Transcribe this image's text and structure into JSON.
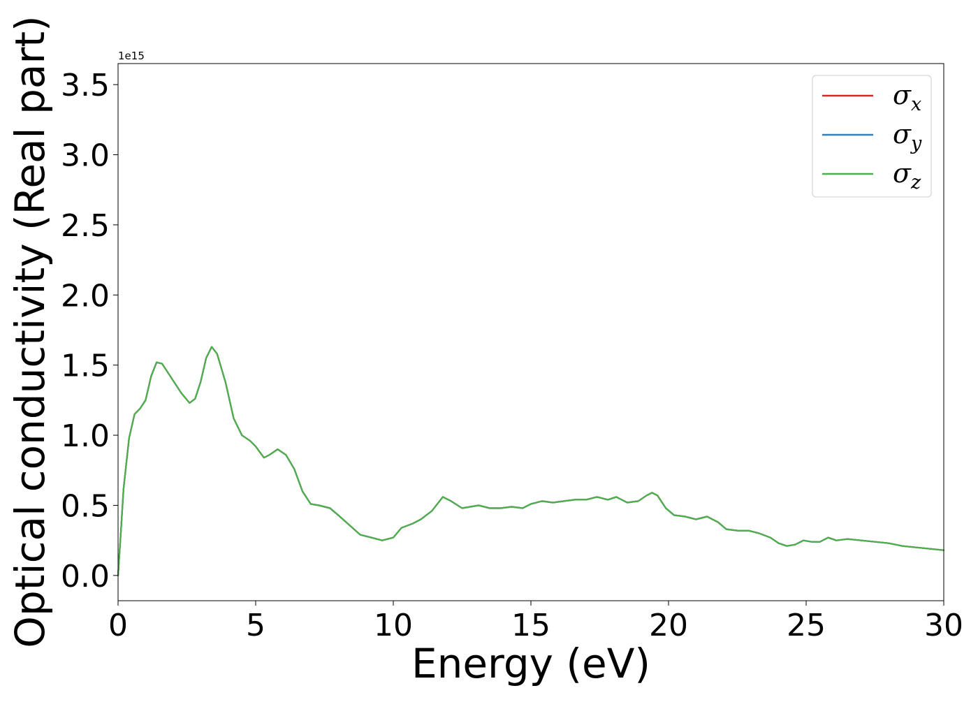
{
  "chart_data": {
    "type": "line",
    "xlabel": "Energy (eV)",
    "ylabel": "Optical conductivity (Real part)",
    "y_offset_label": "1e15",
    "xlim": [
      0,
      30
    ],
    "ylim": [
      -0.18,
      3.65
    ],
    "x_ticks": [
      0,
      5,
      10,
      15,
      20,
      25,
      30
    ],
    "x_tick_labels": [
      "0",
      "5",
      "10",
      "15",
      "20",
      "25",
      "30"
    ],
    "y_ticks": [
      0.0,
      0.5,
      1.0,
      1.5,
      2.0,
      2.5,
      3.0,
      3.5
    ],
    "y_tick_labels": [
      "0.0",
      "0.5",
      "1.0",
      "1.5",
      "2.0",
      "2.5",
      "3.0",
      "3.5"
    ],
    "grid": false,
    "legend_position": "top-right",
    "x": [
      0,
      0.1,
      0.2,
      0.4,
      0.6,
      0.8,
      1.0,
      1.2,
      1.4,
      1.6,
      1.8,
      2.0,
      2.3,
      2.6,
      2.8,
      3.0,
      3.2,
      3.4,
      3.6,
      3.9,
      4.2,
      4.5,
      4.8,
      5.0,
      5.3,
      5.5,
      5.8,
      6.1,
      6.4,
      6.7,
      7.0,
      7.3,
      7.7,
      8.0,
      8.4,
      8.8,
      9.2,
      9.6,
      10.0,
      10.3,
      10.7,
      11.0,
      11.4,
      11.8,
      12.1,
      12.5,
      12.8,
      13.1,
      13.5,
      13.9,
      14.3,
      14.7,
      15.0,
      15.4,
      15.8,
      16.2,
      16.6,
      17.0,
      17.4,
      17.8,
      18.1,
      18.5,
      18.9,
      19.2,
      19.4,
      19.6,
      19.9,
      20.2,
      20.6,
      21.0,
      21.4,
      21.8,
      22.1,
      22.5,
      22.9,
      23.3,
      23.7,
      24.0,
      24.3,
      24.6,
      24.9,
      25.2,
      25.5,
      25.8,
      26.1,
      26.5,
      27.0,
      27.5,
      28.0,
      28.5,
      29.0,
      29.5,
      30.0
    ],
    "series": [
      {
        "name": "σ_x",
        "legend_symbol": "σ",
        "legend_sub": "x",
        "color": "#d62728",
        "values": [
          0.0,
          0.3,
          0.62,
          0.98,
          1.15,
          1.19,
          1.25,
          1.42,
          1.52,
          1.51,
          1.45,
          1.39,
          1.3,
          1.23,
          1.26,
          1.38,
          1.55,
          1.63,
          1.58,
          1.38,
          1.12,
          1.0,
          0.96,
          0.92,
          0.84,
          0.86,
          0.9,
          0.86,
          0.76,
          0.6,
          0.51,
          0.5,
          0.48,
          0.43,
          0.36,
          0.29,
          0.27,
          0.25,
          0.27,
          0.34,
          0.37,
          0.4,
          0.46,
          0.56,
          0.53,
          0.48,
          0.49,
          0.5,
          0.48,
          0.48,
          0.49,
          0.48,
          0.51,
          0.53,
          0.52,
          0.53,
          0.54,
          0.54,
          0.56,
          0.54,
          0.56,
          0.52,
          0.53,
          0.57,
          0.59,
          0.57,
          0.48,
          0.43,
          0.42,
          0.4,
          0.42,
          0.38,
          0.33,
          0.32,
          0.32,
          0.3,
          0.27,
          0.23,
          0.21,
          0.22,
          0.25,
          0.24,
          0.24,
          0.27,
          0.25,
          0.26,
          0.25,
          0.24,
          0.23,
          0.21,
          0.2,
          0.19,
          0.18
        ]
      },
      {
        "name": "σ_y",
        "legend_symbol": "σ",
        "legend_sub": "y",
        "color": "#377eb8",
        "values": [
          0.0,
          0.3,
          0.62,
          0.98,
          1.15,
          1.19,
          1.25,
          1.42,
          1.52,
          1.51,
          1.45,
          1.39,
          1.3,
          1.23,
          1.26,
          1.38,
          1.55,
          1.63,
          1.58,
          1.38,
          1.12,
          1.0,
          0.96,
          0.92,
          0.84,
          0.86,
          0.9,
          0.86,
          0.76,
          0.6,
          0.51,
          0.5,
          0.48,
          0.43,
          0.36,
          0.29,
          0.27,
          0.25,
          0.27,
          0.34,
          0.37,
          0.4,
          0.46,
          0.56,
          0.53,
          0.48,
          0.49,
          0.5,
          0.48,
          0.48,
          0.49,
          0.48,
          0.51,
          0.53,
          0.52,
          0.53,
          0.54,
          0.54,
          0.56,
          0.54,
          0.56,
          0.52,
          0.53,
          0.57,
          0.59,
          0.57,
          0.48,
          0.43,
          0.42,
          0.4,
          0.42,
          0.38,
          0.33,
          0.32,
          0.32,
          0.3,
          0.27,
          0.23,
          0.21,
          0.22,
          0.25,
          0.24,
          0.24,
          0.27,
          0.25,
          0.26,
          0.25,
          0.24,
          0.23,
          0.21,
          0.2,
          0.19,
          0.18
        ]
      },
      {
        "name": "σ_z",
        "legend_symbol": "σ",
        "legend_sub": "z",
        "color": "#4daf4a",
        "values": [
          0.0,
          0.3,
          0.62,
          0.98,
          1.15,
          1.19,
          1.25,
          1.42,
          1.52,
          1.51,
          1.45,
          1.39,
          1.3,
          1.23,
          1.26,
          1.38,
          1.55,
          1.63,
          1.58,
          1.38,
          1.12,
          1.0,
          0.96,
          0.92,
          0.84,
          0.86,
          0.9,
          0.86,
          0.76,
          0.6,
          0.51,
          0.5,
          0.48,
          0.43,
          0.36,
          0.29,
          0.27,
          0.25,
          0.27,
          0.34,
          0.37,
          0.4,
          0.46,
          0.56,
          0.53,
          0.48,
          0.49,
          0.5,
          0.48,
          0.48,
          0.49,
          0.48,
          0.51,
          0.53,
          0.52,
          0.53,
          0.54,
          0.54,
          0.56,
          0.54,
          0.56,
          0.52,
          0.53,
          0.57,
          0.59,
          0.57,
          0.48,
          0.43,
          0.42,
          0.4,
          0.42,
          0.38,
          0.33,
          0.32,
          0.32,
          0.3,
          0.27,
          0.23,
          0.21,
          0.22,
          0.25,
          0.24,
          0.24,
          0.27,
          0.25,
          0.26,
          0.25,
          0.24,
          0.23,
          0.21,
          0.2,
          0.19,
          0.18
        ]
      }
    ]
  }
}
